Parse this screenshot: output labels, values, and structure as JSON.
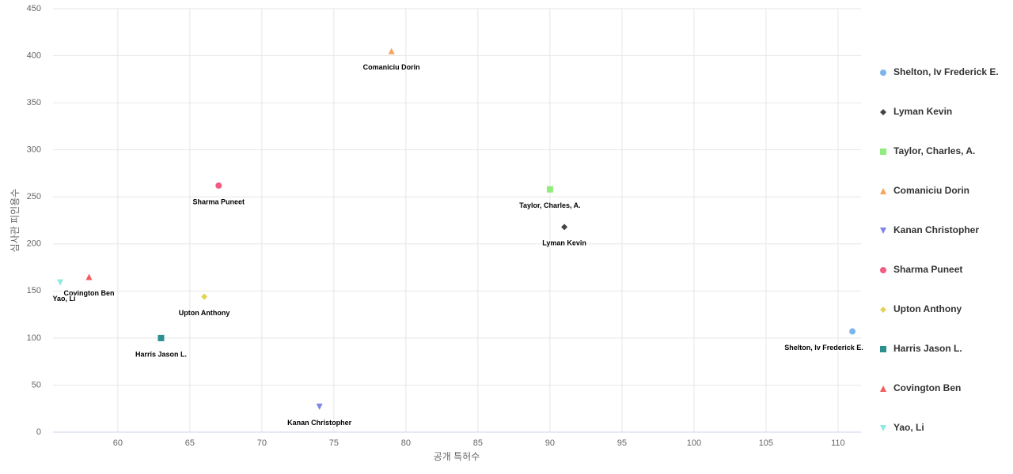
{
  "chart_data": {
    "type": "scatter",
    "x_label": "공개 특허수",
    "y_label": "심사관 피인용수",
    "xlim": [
      55.5,
      111.6
    ],
    "xticks": [
      60,
      65,
      70,
      75,
      80,
      85,
      90,
      95,
      100,
      105,
      110
    ],
    "ylim": [
      0,
      450
    ],
    "yticks": [
      0,
      50,
      100,
      150,
      200,
      250,
      300,
      350,
      400,
      450
    ],
    "grid": true,
    "legend": "right",
    "series": [
      {
        "name": "Shelton, Iv Frederick E.",
        "color": "#7cb5ec",
        "symbol": "circle",
        "x": [
          111
        ],
        "values": [
          107
        ]
      },
      {
        "name": "Lyman Kevin",
        "color": "#434348",
        "symbol": "diamond",
        "x": [
          91
        ],
        "values": [
          218
        ]
      },
      {
        "name": "Taylor, Charles, A.",
        "color": "#90ed7d",
        "symbol": "square",
        "x": [
          90
        ],
        "values": [
          258
        ]
      },
      {
        "name": "Comaniciu Dorin",
        "color": "#f7a35c",
        "symbol": "triangle",
        "x": [
          79
        ],
        "values": [
          405
        ]
      },
      {
        "name": "Kanan Christopher",
        "color": "#8085e9",
        "symbol": "triangle-down",
        "x": [
          74
        ],
        "values": [
          27
        ]
      },
      {
        "name": "Sharma Puneet",
        "color": "#f15c80",
        "symbol": "circle",
        "x": [
          67
        ],
        "values": [
          262
        ]
      },
      {
        "name": "Upton Anthony",
        "color": "#e4d354",
        "symbol": "diamond",
        "x": [
          66
        ],
        "values": [
          144
        ]
      },
      {
        "name": "Harris Jason L.",
        "color": "#2b908f",
        "symbol": "square",
        "x": [
          63
        ],
        "values": [
          100
        ]
      },
      {
        "name": "Covington Ben",
        "color": "#f45b5b",
        "symbol": "triangle",
        "x": [
          58
        ],
        "values": [
          165
        ]
      },
      {
        "name": "Yao, Li",
        "color": "#91e8e1",
        "symbol": "triangle-down",
        "x": [
          56
        ],
        "values": [
          159
        ]
      }
    ]
  }
}
